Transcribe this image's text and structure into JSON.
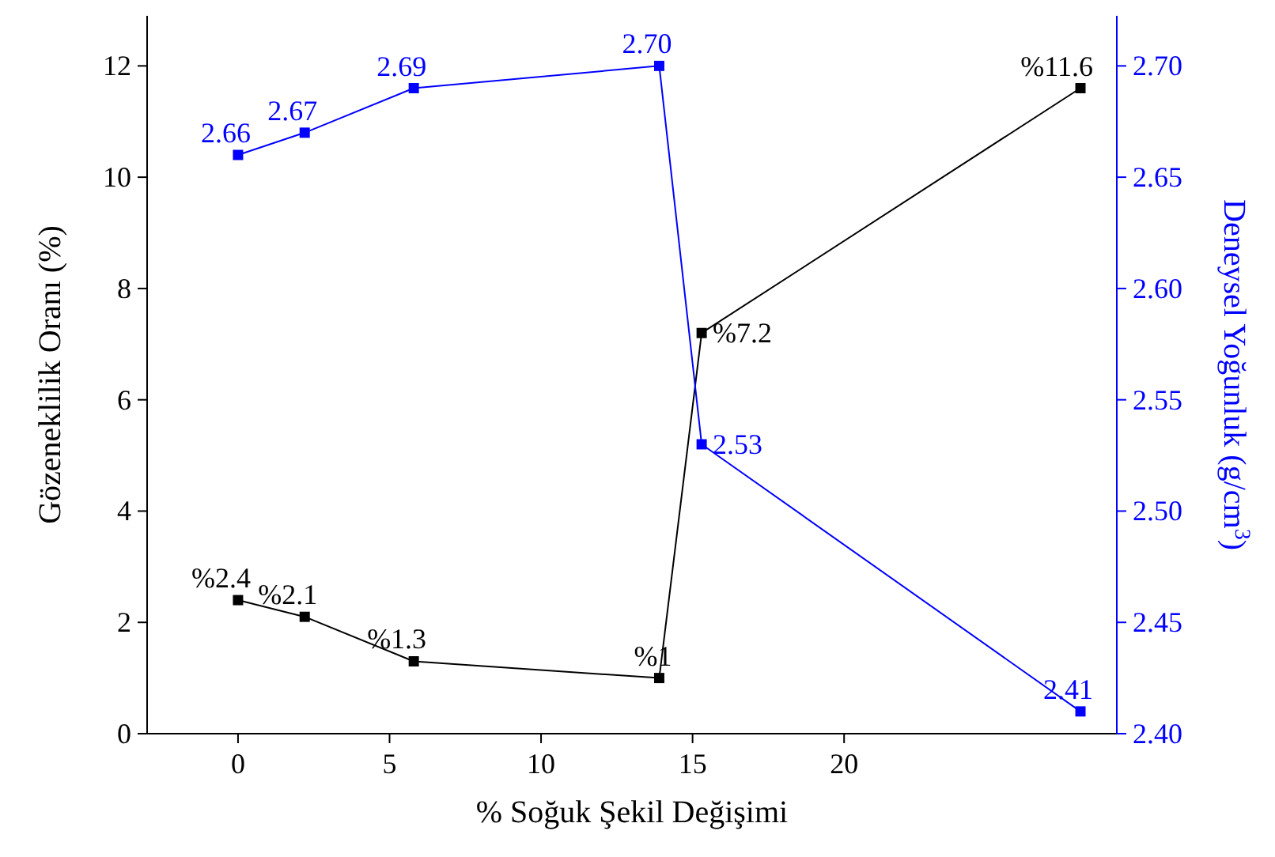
{
  "chart_data": {
    "type": "line",
    "xlabel": "% Soğuk Şekil Değişimi",
    "ylabel": "Gözeneklilik Oranı (%)",
    "y2label": "Deneysel Yoğunluk (g/cm$^{3}$)",
    "xlim": [
      -3,
      29
    ],
    "xticks": [
      0,
      5,
      10,
      15,
      20
    ],
    "ylim": [
      0,
      12.9
    ],
    "yticks": [
      0,
      2,
      4,
      6,
      8,
      10,
      12
    ],
    "y2lim": [
      2.4,
      2.7225
    ],
    "y2ticks": [
      {
        "value": 2.4,
        "label": "2.40"
      },
      2.45,
      {
        "value": 2.5,
        "label": "2.50"
      },
      2.55,
      {
        "value": 2.6,
        "label": "2.60"
      },
      2.65,
      {
        "value": 2.7,
        "label": "2.70"
      }
    ],
    "marker": "square",
    "grid": false,
    "series": [
      {
        "color": "#000000",
        "x": [
          0,
          2.2,
          5.8,
          13.9,
          15.3,
          27.8
        ],
        "values": [
          2.4,
          2.1,
          1.3,
          1,
          7.2,
          11.6
        ],
        "value_labels": [
          "%2.4",
          "%2.1",
          "%1.3",
          "%1",
          "%7.2",
          "%11.6"
        ]
      },
      {
        "color": "#0000ff",
        "axis": "y2",
        "x": [
          0,
          2.2,
          5.8,
          13.9,
          15.3,
          27.8
        ],
        "values": [
          2.66,
          2.67,
          2.69,
          2.7,
          2.53,
          2.41
        ],
        "value_labels": [
          "2.66",
          "2.67",
          "2.69",
          "2.70",
          "2.53",
          "2.41"
        ]
      }
    ]
  }
}
